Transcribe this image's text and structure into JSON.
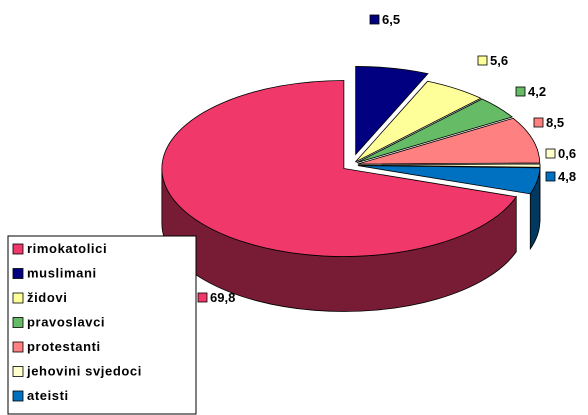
{
  "chart_data": {
    "type": "pie3d",
    "categories": [
      "rimokatolici",
      "muslimani",
      "židovi",
      "pravoslavci",
      "protestanti",
      "jehovini svjedoci",
      "ateisti"
    ],
    "values": [
      69.8,
      6.5,
      5.6,
      4.2,
      8.5,
      0.6,
      4.8
    ],
    "value_labels": [
      "69,8",
      "6,5",
      "5,6",
      "4,2",
      "8,5",
      "0,6",
      "4,8"
    ],
    "colors": [
      "#f0386a",
      "#000080",
      "#ffff99",
      "#66bb66",
      "#ff8080",
      "#ffffcc",
      "#0070c0"
    ],
    "legend": "bottom-left"
  }
}
